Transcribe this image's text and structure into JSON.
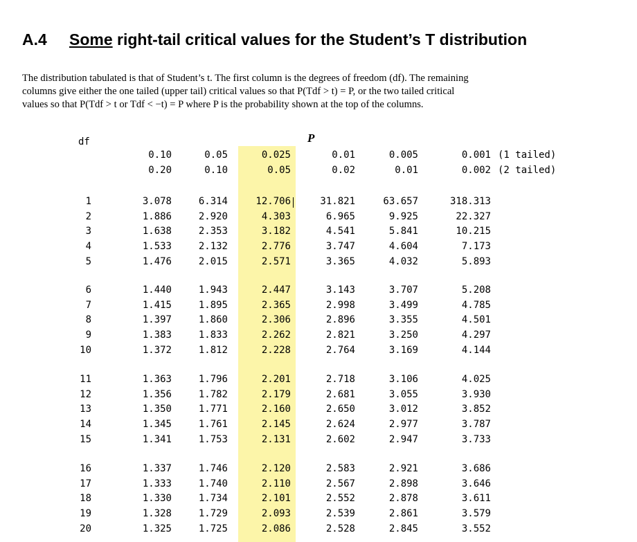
{
  "heading": {
    "number": "A.4",
    "underlined_word": "Some",
    "rest": "right-tail critical values for the Student’s T distribution"
  },
  "intro": {
    "line1": "The distribution tabulated is that of Student’s t.  The first column is the degrees of freedom (df).  The remaining",
    "line2": "columns give either the one tailed (upper tail) critical values so that  P(Tdf > t) = P, or the two tailed critical",
    "line3": "values so that P(Tdf > t or Tdf < −t) = P where P is the probability shown at the top of the columns."
  },
  "table": {
    "df_label": "df",
    "p_label": "P",
    "one_tailed": [
      "0.10",
      "0.05",
      "0.025",
      "0.01",
      "0.005",
      "0.001"
    ],
    "two_tailed": [
      "0.20",
      "0.10",
      "0.05",
      "0.02",
      "0.01",
      "0.002"
    ],
    "one_tailed_note": "(1 tailed)",
    "two_tailed_note": "(2 tailed)",
    "highlight_color": "#fcf5a9",
    "rows": [
      {
        "df": "1",
        "values": [
          "3.078",
          "6.314",
          "12.706",
          "31.821",
          "63.657",
          "318.313"
        ]
      },
      {
        "df": "2",
        "values": [
          "1.886",
          "2.920",
          "4.303",
          "6.965",
          "9.925",
          "22.327"
        ]
      },
      {
        "df": "3",
        "values": [
          "1.638",
          "2.353",
          "3.182",
          "4.541",
          "5.841",
          "10.215"
        ]
      },
      {
        "df": "4",
        "values": [
          "1.533",
          "2.132",
          "2.776",
          "3.747",
          "4.604",
          "7.173"
        ]
      },
      {
        "df": "5",
        "values": [
          "1.476",
          "2.015",
          "2.571",
          "3.365",
          "4.032",
          "5.893"
        ]
      },
      {
        "df": "6",
        "values": [
          "1.440",
          "1.943",
          "2.447",
          "3.143",
          "3.707",
          "5.208"
        ]
      },
      {
        "df": "7",
        "values": [
          "1.415",
          "1.895",
          "2.365",
          "2.998",
          "3.499",
          "4.785"
        ]
      },
      {
        "df": "8",
        "values": [
          "1.397",
          "1.860",
          "2.306",
          "2.896",
          "3.355",
          "4.501"
        ]
      },
      {
        "df": "9",
        "values": [
          "1.383",
          "1.833",
          "2.262",
          "2.821",
          "3.250",
          "4.297"
        ]
      },
      {
        "df": "10",
        "values": [
          "1.372",
          "1.812",
          "2.228",
          "2.764",
          "3.169",
          "4.144"
        ]
      },
      {
        "df": "11",
        "values": [
          "1.363",
          "1.796",
          "2.201",
          "2.718",
          "3.106",
          "4.025"
        ]
      },
      {
        "df": "12",
        "values": [
          "1.356",
          "1.782",
          "2.179",
          "2.681",
          "3.055",
          "3.930"
        ]
      },
      {
        "df": "13",
        "values": [
          "1.350",
          "1.771",
          "2.160",
          "2.650",
          "3.012",
          "3.852"
        ]
      },
      {
        "df": "14",
        "values": [
          "1.345",
          "1.761",
          "2.145",
          "2.624",
          "2.977",
          "3.787"
        ]
      },
      {
        "df": "15",
        "values": [
          "1.341",
          "1.753",
          "2.131",
          "2.602",
          "2.947",
          "3.733"
        ]
      },
      {
        "df": "16",
        "values": [
          "1.337",
          "1.746",
          "2.120",
          "2.583",
          "2.921",
          "3.686"
        ]
      },
      {
        "df": "17",
        "values": [
          "1.333",
          "1.740",
          "2.110",
          "2.567",
          "2.898",
          "3.646"
        ]
      },
      {
        "df": "18",
        "values": [
          "1.330",
          "1.734",
          "2.101",
          "2.552",
          "2.878",
          "3.611"
        ]
      },
      {
        "df": "19",
        "values": [
          "1.328",
          "1.729",
          "2.093",
          "2.539",
          "2.861",
          "3.579"
        ]
      },
      {
        "df": "20",
        "values": [
          "1.325",
          "1.725",
          "2.086",
          "2.528",
          "2.845",
          "3.552"
        ]
      }
    ]
  }
}
